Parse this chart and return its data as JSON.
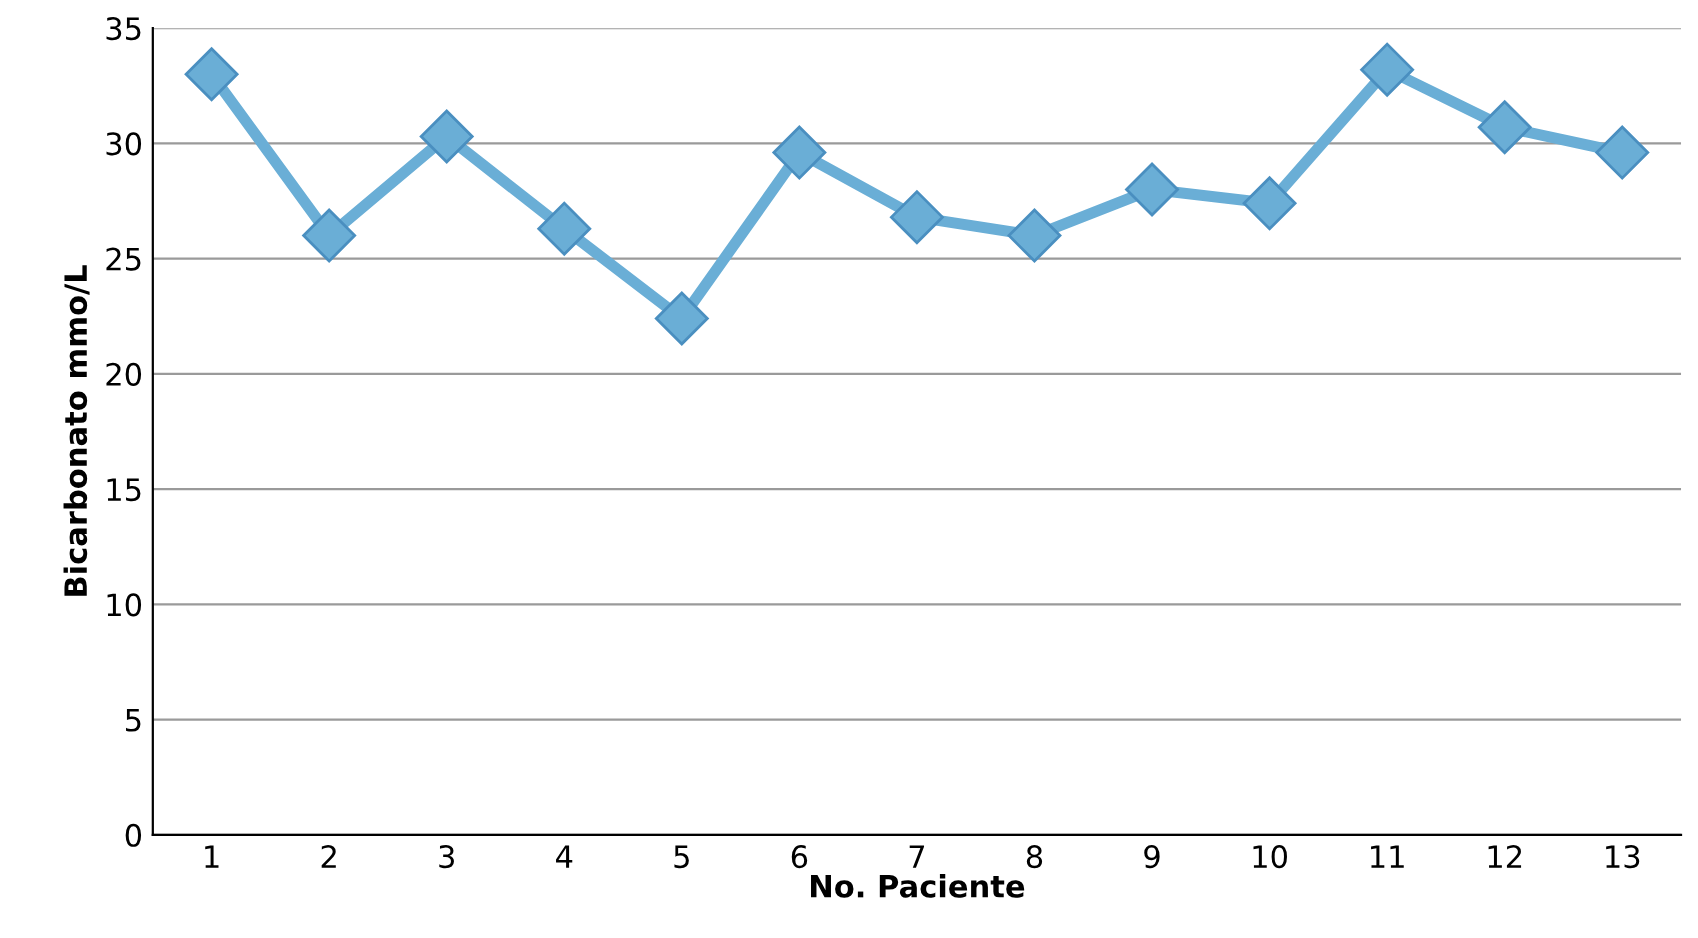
{
  "chart_data": {
    "type": "line",
    "xlabel": "No. Paciente",
    "ylabel": "Bicarbonato mmo/L",
    "categories": [
      "1",
      "2",
      "3",
      "4",
      "5",
      "6",
      "7",
      "8",
      "9",
      "10",
      "11",
      "12",
      "13"
    ],
    "series": [
      {
        "color": "#6aaed6",
        "values": [
          33,
          26,
          30.3,
          26.3,
          22.4,
          29.6,
          26.8,
          26,
          28,
          27.4,
          33.2,
          30.7,
          29.6
        ]
      }
    ],
    "ylim": [
      0,
      35
    ],
    "yticks": [
      0,
      5,
      10,
      15,
      20,
      25,
      30,
      35
    ],
    "grid": "y",
    "marker": "diamond",
    "line_style": "solid",
    "legend": false
  }
}
